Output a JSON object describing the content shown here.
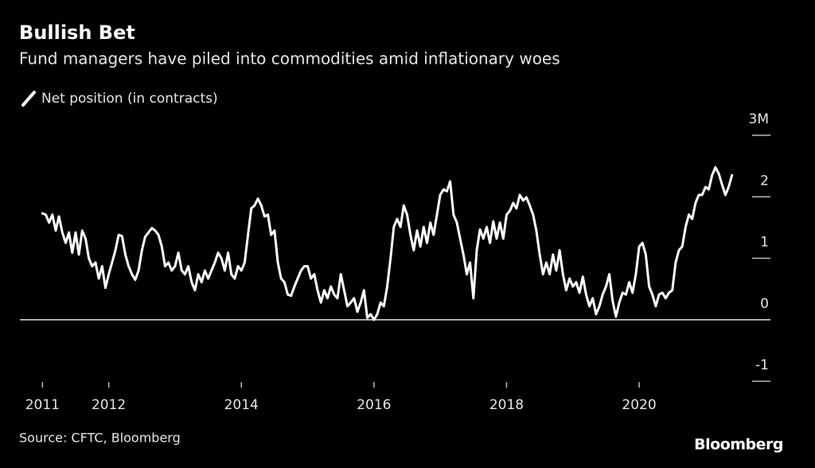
{
  "chart_data": {
    "type": "line",
    "title": "Bullish Bet",
    "subtitle": "Fund managers have piled into commodities amid inflationary woes",
    "source": "Source: CFTC, Bloomberg",
    "brand": "Bloomberg",
    "xlim": [
      2010.66,
      2021.98
    ],
    "xticks": [
      2011,
      2012,
      2014,
      2016,
      2018,
      2020
    ],
    "ylim": [
      -1,
      3
    ],
    "yticks": [
      -1,
      0,
      1,
      2,
      {
        "value": 3,
        "label": "3M"
      }
    ],
    "x": [
      2011,
      2011.05,
      2011.1,
      2011.15,
      2011.2,
      2011.25,
      2011.3,
      2011.35,
      2011.4,
      2011.45,
      2011.5,
      2011.55,
      2011.6,
      2011.65,
      2011.7,
      2011.75,
      2011.8,
      2011.85,
      2011.9,
      2011.95,
      2012,
      2012.05,
      2012.1,
      2012.15,
      2012.2,
      2012.25,
      2012.3,
      2012.35,
      2012.4,
      2012.45,
      2012.5,
      2012.55,
      2012.6,
      2012.65,
      2012.7,
      2012.75,
      2012.8,
      2012.85,
      2012.9,
      2012.95,
      2013,
      2013.05,
      2013.1,
      2013.15,
      2013.2,
      2013.25,
      2013.3,
      2013.35,
      2013.4,
      2013.45,
      2013.5,
      2013.55,
      2013.6,
      2013.65,
      2013.7,
      2013.75,
      2013.8,
      2013.85,
      2013.9,
      2013.95,
      2014,
      2014.05,
      2014.1,
      2014.15,
      2014.2,
      2014.25,
      2014.3,
      2014.35,
      2014.4,
      2014.45,
      2014.5,
      2014.55,
      2014.6,
      2014.65,
      2014.7,
      2014.75,
      2014.8,
      2014.85,
      2014.9,
      2014.95,
      2015,
      2015.05,
      2015.1,
      2015.15,
      2015.2,
      2015.25,
      2015.3,
      2015.35,
      2015.4,
      2015.45,
      2015.5,
      2015.55,
      2015.6,
      2015.65,
      2015.7,
      2015.75,
      2015.8,
      2015.85,
      2015.9,
      2015.95,
      2016,
      2016.05,
      2016.1,
      2016.15,
      2016.2,
      2016.25,
      2016.3,
      2016.35,
      2016.4,
      2016.45,
      2016.5,
      2016.55,
      2016.6,
      2016.65,
      2016.7,
      2016.75,
      2016.8,
      2016.85,
      2016.9,
      2016.95,
      2017,
      2017.05,
      2017.1,
      2017.15,
      2017.2,
      2017.25,
      2017.3,
      2017.35,
      2017.4,
      2017.45,
      2017.5,
      2017.55,
      2017.6,
      2017.65,
      2017.7,
      2017.75,
      2017.8,
      2017.85,
      2017.9,
      2017.95,
      2018,
      2018.05,
      2018.1,
      2018.15,
      2018.2,
      2018.25,
      2018.3,
      2018.35,
      2018.4,
      2018.45,
      2018.5,
      2018.55,
      2018.6,
      2018.65,
      2018.7,
      2018.75,
      2018.8,
      2018.85,
      2018.9,
      2018.95,
      2019,
      2019.05,
      2019.1,
      2019.15,
      2019.2,
      2019.25,
      2019.3,
      2019.35,
      2019.4,
      2019.45,
      2019.5,
      2019.55,
      2019.6,
      2019.65,
      2019.7,
      2019.75,
      2019.8,
      2019.85,
      2019.9,
      2019.95,
      2020,
      2020.05,
      2020.1,
      2020.15,
      2020.2,
      2020.25,
      2020.3,
      2020.35,
      2020.4,
      2020.45,
      2020.5,
      2020.55,
      2020.6,
      2020.65,
      2020.7,
      2020.75,
      2020.8,
      2020.85,
      2020.9,
      2020.95,
      2021,
      2021.05,
      2021.1,
      2021.15,
      2021.2,
      2021.25,
      2021.3,
      2021.35,
      2021.4
    ],
    "series": [
      {
        "name": "Net position (in contracts)",
        "color": "#ffffff",
        "values": [
          1.73,
          1.71,
          1.58,
          1.71,
          1.45,
          1.68,
          1.42,
          1.25,
          1.42,
          1.09,
          1.42,
          1.06,
          1.45,
          1.32,
          1.0,
          0.87,
          0.93,
          0.67,
          0.87,
          0.52,
          0.74,
          0.93,
          1.13,
          1.38,
          1.36,
          1.06,
          0.87,
          0.74,
          0.65,
          0.8,
          1.13,
          1.35,
          1.42,
          1.49,
          1.45,
          1.38,
          1.19,
          0.87,
          0.93,
          0.8,
          0.87,
          1.09,
          0.8,
          0.74,
          0.87,
          0.61,
          0.48,
          0.74,
          0.61,
          0.8,
          0.67,
          0.8,
          0.93,
          1.09,
          1.0,
          0.8,
          1.09,
          0.74,
          0.67,
          0.87,
          0.8,
          0.93,
          1.38,
          1.81,
          1.86,
          1.97,
          1.86,
          1.68,
          1.71,
          1.38,
          1.45,
          0.93,
          0.67,
          0.61,
          0.41,
          0.39,
          0.54,
          0.67,
          0.8,
          0.87,
          0.87,
          0.67,
          0.74,
          0.48,
          0.28,
          0.48,
          0.35,
          0.54,
          0.41,
          0.35,
          0.74,
          0.48,
          0.22,
          0.28,
          0.35,
          0.13,
          0.28,
          0.48,
          0.03,
          0.09,
          0,
          0.09,
          0.28,
          0.22,
          0.54,
          1.0,
          1.51,
          1.64,
          1.51,
          1.86,
          1.71,
          1.38,
          1.13,
          1.45,
          1.19,
          1.51,
          1.25,
          1.58,
          1.38,
          1.71,
          2.03,
          2.12,
          2.09,
          2.25,
          1.71,
          1.58,
          1.32,
          1.06,
          0.74,
          0.93,
          0.35,
          1.13,
          1.47,
          1.32,
          1.51,
          1.25,
          1.6,
          1.32,
          1.58,
          1.32,
          1.71,
          1.77,
          1.9,
          1.81,
          2.03,
          1.94,
          1.99,
          1.86,
          1.71,
          1.45,
          1.06,
          0.74,
          0.93,
          0.74,
          1.06,
          0.8,
          1.13,
          0.74,
          0.48,
          0.67,
          0.54,
          0.61,
          0.44,
          0.7,
          0.41,
          0.22,
          0.35,
          0.09,
          0.22,
          0.41,
          0.54,
          0.74,
          0.31,
          0.05,
          0.28,
          0.44,
          0.41,
          0.61,
          0.44,
          0.74,
          1.19,
          1.25,
          1.06,
          0.54,
          0.41,
          0.22,
          0.41,
          0.44,
          0.35,
          0.44,
          0.48,
          0.93,
          1.13,
          1.19,
          1.51,
          1.71,
          1.64,
          1.9,
          2.03,
          2.03,
          2.16,
          2.12,
          2.35,
          2.48,
          2.38,
          2.2,
          2.03,
          2.16,
          2.35
        ]
      }
    ]
  }
}
